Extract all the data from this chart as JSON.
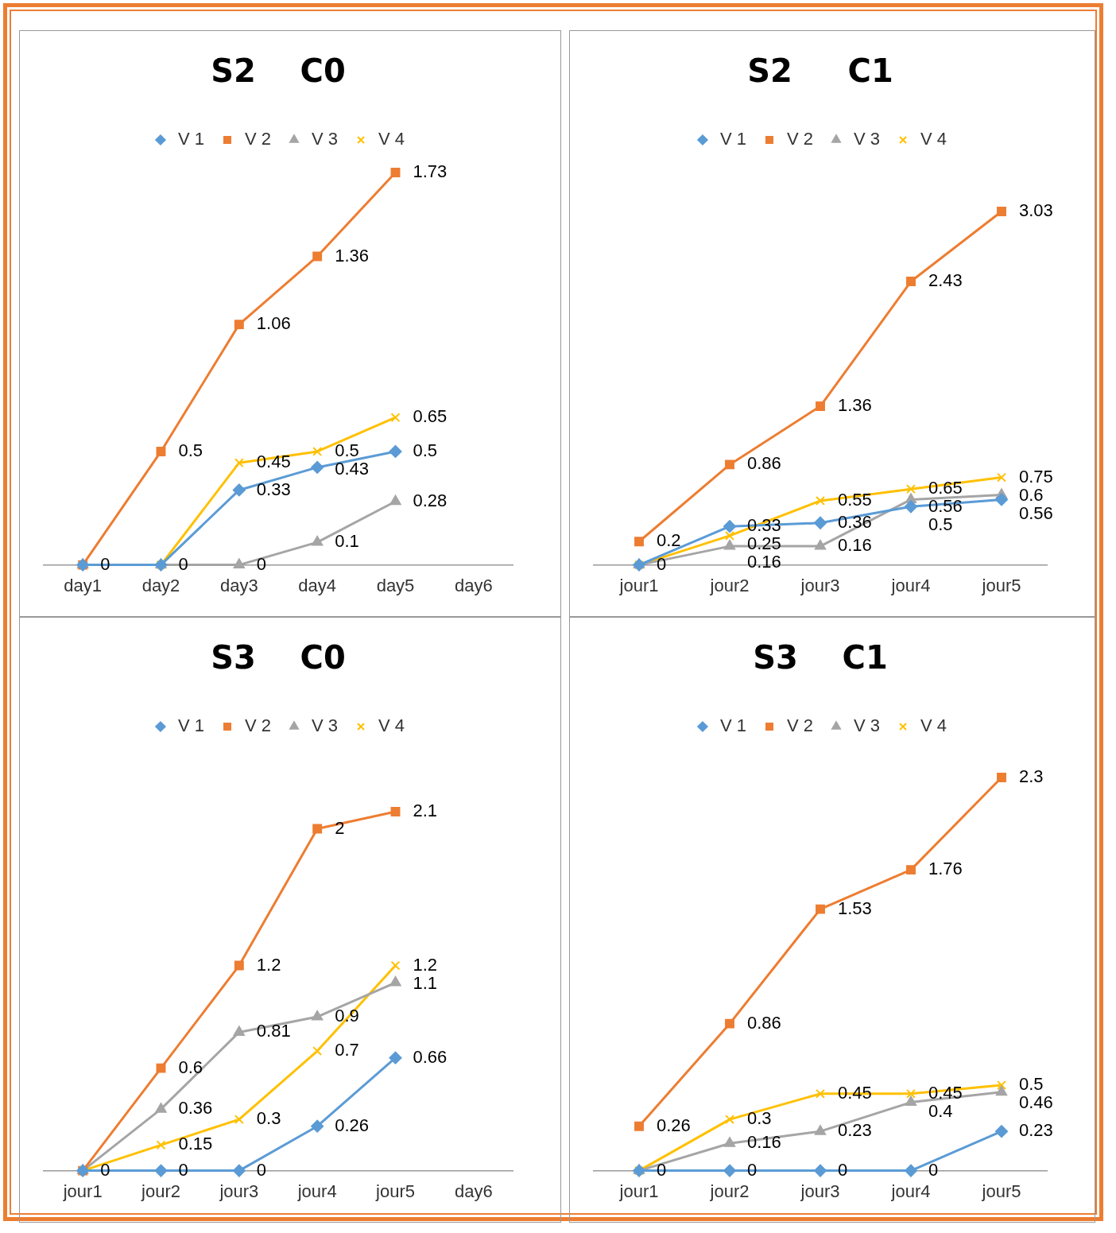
{
  "chart_data": [
    {
      "type": "line",
      "title": "S2    C0",
      "categories": [
        "day1",
        "day2",
        "day3",
        "day4",
        "day5",
        "day6"
      ],
      "legend": "top",
      "series": [
        {
          "name": "V 1",
          "color": "#5b9bd5",
          "marker": "diamond",
          "values": [
            0,
            0,
            0.33,
            0.43,
            0.5,
            null
          ],
          "value_labels": [
            "0",
            "0",
            "0.33",
            "0.43",
            "0.5",
            null
          ]
        },
        {
          "name": "V 2",
          "color": "#ed7d31",
          "marker": "square",
          "values": [
            0,
            0.5,
            1.06,
            1.36,
            1.73,
            null
          ],
          "value_labels": [
            null,
            "0.5",
            "1.06",
            "1.36",
            "1.73",
            null
          ]
        },
        {
          "name": "V 3",
          "color": "#a5a5a5",
          "marker": "triangle",
          "values": [
            0,
            0,
            0,
            0.1,
            0.28,
            null
          ],
          "value_labels": [
            null,
            null,
            "0",
            "0.1",
            "0.28",
            null
          ]
        },
        {
          "name": "V 4",
          "color": "#ffc000",
          "marker": "cross",
          "values": [
            0,
            0,
            0.45,
            0.5,
            0.65,
            null
          ],
          "value_labels": [
            null,
            null,
            "0.45",
            "0.5",
            "0.65",
            null
          ]
        }
      ]
    },
    {
      "type": "line",
      "title": "S2     C1",
      "categories": [
        "jour1",
        "jour2",
        "jour3",
        "jour4",
        "jour5"
      ],
      "legend": "top",
      "series": [
        {
          "name": "V 1",
          "color": "#5b9bd5",
          "marker": "diamond",
          "values": [
            0,
            0.33,
            0.36,
            0.5,
            0.56
          ],
          "value_labels": [
            "0",
            "0.33",
            "0.36",
            "0.5",
            "0.56"
          ]
        },
        {
          "name": "V 2",
          "color": "#ed7d31",
          "marker": "square",
          "values": [
            0.2,
            0.86,
            1.36,
            2.43,
            3.03
          ],
          "value_labels": [
            "0.2",
            "0.86",
            "1.36",
            "2.43",
            "3.03"
          ]
        },
        {
          "name": "V 3",
          "color": "#a5a5a5",
          "marker": "triangle",
          "values": [
            0,
            0.16,
            0.16,
            0.56,
            0.6
          ],
          "value_labels": [
            null,
            "0.16",
            "0.16",
            "0.56",
            "0.6"
          ]
        },
        {
          "name": "V 4",
          "color": "#ffc000",
          "marker": "cross",
          "values": [
            0,
            0.25,
            0.55,
            0.65,
            0.75
          ],
          "value_labels": [
            null,
            "0.25",
            "0.55",
            "0.65",
            "0.75"
          ]
        }
      ]
    },
    {
      "type": "line",
      "title": "S3    C0",
      "categories": [
        "jour1",
        "jour2",
        "jour3",
        "jour4",
        "jour5",
        "day6"
      ],
      "legend": "top",
      "series": [
        {
          "name": "V 1",
          "color": "#5b9bd5",
          "marker": "diamond",
          "values": [
            0,
            0,
            0,
            0.26,
            0.66,
            null
          ],
          "value_labels": [
            "0",
            "0",
            "0",
            "0.26",
            "0.66",
            null
          ]
        },
        {
          "name": "V 2",
          "color": "#ed7d31",
          "marker": "square",
          "values": [
            0,
            0.6,
            1.2,
            2,
            2.1,
            null
          ],
          "value_labels": [
            null,
            "0.6",
            "1.2",
            "2",
            "2.1",
            null
          ]
        },
        {
          "name": "V 3",
          "color": "#a5a5a5",
          "marker": "triangle",
          "values": [
            0,
            0.36,
            0.81,
            0.9,
            1.1,
            null
          ],
          "value_labels": [
            null,
            "0.36",
            "0.81",
            "0.9",
            "1.1",
            null
          ]
        },
        {
          "name": "V 4",
          "color": "#ffc000",
          "marker": "cross",
          "values": [
            0,
            0.15,
            0.3,
            0.7,
            1.2,
            null
          ],
          "value_labels": [
            null,
            "0.15",
            "0.3",
            "0.7",
            "1.2",
            null
          ]
        }
      ]
    },
    {
      "type": "line",
      "title": "S3    C1",
      "categories": [
        "jour1",
        "jour2",
        "jour3",
        "jour4",
        "jour5"
      ],
      "legend": "top",
      "series": [
        {
          "name": "V 1",
          "color": "#5b9bd5",
          "marker": "diamond",
          "values": [
            0,
            0,
            0,
            0,
            0.23
          ],
          "value_labels": [
            "0",
            "0",
            "0",
            "0",
            "0.23"
          ]
        },
        {
          "name": "V 2",
          "color": "#ed7d31",
          "marker": "square",
          "values": [
            0.26,
            0.86,
            1.53,
            1.76,
            2.3
          ],
          "value_labels": [
            "0.26",
            "0.86",
            "1.53",
            "1.76",
            "2.3"
          ]
        },
        {
          "name": "V 3",
          "color": "#a5a5a5",
          "marker": "triangle",
          "values": [
            0,
            0.16,
            0.23,
            0.4,
            0.46
          ],
          "value_labels": [
            null,
            "0.16",
            "0.23",
            "0.4",
            "0.46"
          ]
        },
        {
          "name": "V 4",
          "color": "#ffc000",
          "marker": "cross",
          "values": [
            0,
            0.3,
            0.45,
            0.45,
            0.5
          ],
          "value_labels": [
            null,
            "0.3",
            "0.45",
            "0.45",
            "0.5"
          ]
        }
      ]
    }
  ]
}
